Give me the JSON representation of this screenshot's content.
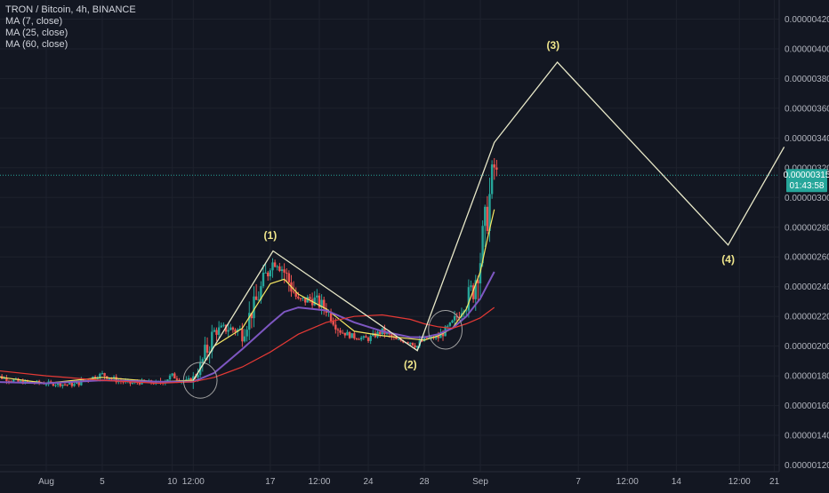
{
  "header": {
    "symbol_line": "TRON / Bitcoin, 4h, BINANCE",
    "indicators": [
      "MA (7, close)",
      "MA (25, close)",
      "MA (60, close)"
    ]
  },
  "colors": {
    "background": "#131722",
    "grid": "#1e222d",
    "axis_text": "#b2b5be",
    "candle_up": "#26a69a",
    "candle_down": "#ef5350",
    "ma7": "#f5e663",
    "ma25": "#7e57c2",
    "ma60": "#e53935",
    "projection": "#e8e8c8",
    "wave_label": "#f0e68c",
    "price_badge": "#26a69a",
    "ellipse": "#a0a0a0"
  },
  "chart_data": {
    "type": "candlestick",
    "title": "TRON / Bitcoin, 4h, BINANCE",
    "y_axis": {
      "position": "right",
      "min": 1.2e-06,
      "max": 4.3e-06,
      "ticks": [
        "0.00000120",
        "0.00000140",
        "0.00000160",
        "0.00000180",
        "0.00000200",
        "0.00000220",
        "0.00000240",
        "0.00000260",
        "0.00000280",
        "0.00000300",
        "0.00000320",
        "0.00000340",
        "0.00000360",
        "0.00000380",
        "0.00000400",
        "0.00000420"
      ]
    },
    "x_axis": {
      "ticks": [
        {
          "label": "Aug",
          "day": 0
        },
        {
          "label": "5",
          "day": 4
        },
        {
          "label": "10",
          "day": 9
        },
        {
          "label": "12:00",
          "day": 10.5
        },
        {
          "label": "17",
          "day": 16
        },
        {
          "label": "12:00",
          "day": 19.5
        },
        {
          "label": "24",
          "day": 23
        },
        {
          "label": "28",
          "day": 27
        },
        {
          "label": "Sep",
          "day": 31
        },
        {
          "label": "7",
          "day": 38
        },
        {
          "label": "12:00",
          "day": 41.5
        },
        {
          "label": "14",
          "day": 45
        },
        {
          "label": "12:00",
          "day": 49.5
        },
        {
          "label": "21",
          "day": 52
        }
      ],
      "day_min": -4,
      "day_max": 54
    },
    "current_price": {
      "value": "0.00000315",
      "countdown": "01:43:58",
      "y": 3.15e-06
    },
    "ohlc_anchors": [
      [
        -4,
        1.81
      ],
      [
        -2,
        1.76
      ],
      [
        0,
        1.75
      ],
      [
        2,
        1.74
      ],
      [
        3,
        1.78
      ],
      [
        4,
        1.81
      ],
      [
        5,
        1.77
      ],
      [
        6,
        1.75
      ],
      [
        7,
        1.76
      ],
      [
        8,
        1.75
      ],
      [
        9,
        1.8
      ],
      [
        10,
        1.76
      ],
      [
        10.5,
        1.78
      ],
      [
        11,
        1.86
      ],
      [
        12,
        2.1
      ],
      [
        13,
        2.12
      ],
      [
        14,
        2.1
      ],
      [
        15,
        2.3
      ],
      [
        16,
        2.55
      ],
      [
        16.5,
        2.58
      ],
      [
        17,
        2.5
      ],
      [
        18,
        2.3
      ],
      [
        19,
        2.32
      ],
      [
        20,
        2.25
      ],
      [
        21,
        2.1
      ],
      [
        22,
        2.06
      ],
      [
        23,
        2.05
      ],
      [
        24,
        2.1
      ],
      [
        25,
        2.04
      ],
      [
        26,
        2.03
      ],
      [
        26.5,
        2.0
      ],
      [
        27,
        2.05
      ],
      [
        28,
        2.06
      ],
      [
        29,
        2.15
      ],
      [
        30,
        2.3
      ],
      [
        30.5,
        2.4
      ],
      [
        31,
        2.6
      ],
      [
        31.5,
        2.9
      ],
      [
        32,
        3.2
      ],
      [
        32.2,
        3.15
      ]
    ],
    "series": [
      {
        "name": "MA (7, close)",
        "color": "#f5e663",
        "points": [
          [
            -4,
            1.8
          ],
          [
            0,
            1.75
          ],
          [
            4,
            1.79
          ],
          [
            8,
            1.76
          ],
          [
            10.5,
            1.77
          ],
          [
            12,
            2.0
          ],
          [
            14,
            2.12
          ],
          [
            16,
            2.42
          ],
          [
            17,
            2.45
          ],
          [
            18,
            2.35
          ],
          [
            20,
            2.25
          ],
          [
            22,
            2.1
          ],
          [
            24,
            2.07
          ],
          [
            26,
            2.05
          ],
          [
            27,
            2.04
          ],
          [
            28,
            2.07
          ],
          [
            29,
            2.12
          ],
          [
            30,
            2.25
          ],
          [
            31,
            2.5
          ],
          [
            31.5,
            2.72
          ],
          [
            32,
            2.92
          ]
        ]
      },
      {
        "name": "MA (25, close)",
        "color": "#7e57c2",
        "points": [
          [
            -4,
            1.76
          ],
          [
            0,
            1.75
          ],
          [
            4,
            1.77
          ],
          [
            8,
            1.76
          ],
          [
            10.5,
            1.76
          ],
          [
            12,
            1.82
          ],
          [
            14,
            1.98
          ],
          [
            16,
            2.15
          ],
          [
            17,
            2.23
          ],
          [
            18,
            2.26
          ],
          [
            20,
            2.24
          ],
          [
            22,
            2.16
          ],
          [
            24,
            2.1
          ],
          [
            26,
            2.06
          ],
          [
            27,
            2.06
          ],
          [
            28,
            2.08
          ],
          [
            29,
            2.12
          ],
          [
            30,
            2.2
          ],
          [
            31,
            2.32
          ],
          [
            32,
            2.5
          ]
        ]
      },
      {
        "name": "MA (60, close)",
        "color": "#e53935",
        "points": [
          [
            -4,
            1.84
          ],
          [
            0,
            1.8
          ],
          [
            4,
            1.77
          ],
          [
            8,
            1.75
          ],
          [
            10.5,
            1.76
          ],
          [
            12,
            1.79
          ],
          [
            14,
            1.86
          ],
          [
            16,
            1.96
          ],
          [
            18,
            2.08
          ],
          [
            20,
            2.16
          ],
          [
            22,
            2.2
          ],
          [
            24,
            2.21
          ],
          [
            26,
            2.18
          ],
          [
            27,
            2.15
          ],
          [
            28,
            2.13
          ],
          [
            29,
            2.12
          ],
          [
            30,
            2.15
          ],
          [
            31,
            2.19
          ],
          [
            32,
            2.26
          ]
        ]
      }
    ],
    "projection": {
      "color": "#e8e8c8",
      "points": [
        [
          10.5,
          1.77
        ],
        [
          16.2,
          2.64
        ],
        [
          26.5,
          1.97
        ],
        [
          32,
          3.37
        ],
        [
          36.5,
          3.91
        ],
        [
          48.7,
          2.68
        ],
        [
          52.7,
          3.34
        ]
      ]
    },
    "wave_labels": [
      {
        "text": "(1)",
        "day": 16,
        "y": 2.72
      },
      {
        "text": "(2)",
        "day": 26,
        "y": 1.85
      },
      {
        "text": "(3)",
        "day": 36.2,
        "y": 4.0
      },
      {
        "text": "(4)",
        "day": 48.7,
        "y": 2.56
      }
    ],
    "ellipses": [
      {
        "day": 11,
        "y": 1.77,
        "rx_days": 1.2,
        "ry": 0.12
      },
      {
        "day": 28.5,
        "y": 2.11,
        "rx_days": 1.2,
        "ry": 0.13
      }
    ]
  }
}
